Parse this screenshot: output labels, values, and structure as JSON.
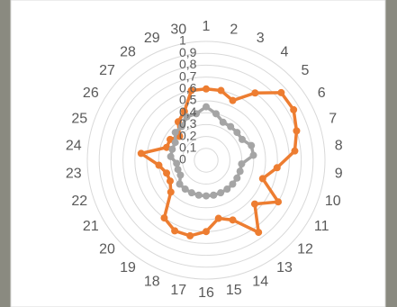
{
  "chart_data": {
    "type": "radar",
    "categories": [
      "1",
      "2",
      "3",
      "4",
      "5",
      "6",
      "7",
      "8",
      "9",
      "10",
      "11",
      "12",
      "13",
      "14",
      "15",
      "16",
      "17",
      "18",
      "19",
      "20",
      "21",
      "22",
      "23",
      "24",
      "25",
      "26",
      "27",
      "28",
      "29",
      "30"
    ],
    "series": [
      {
        "color": "#ED7D31",
        "values": [
          0.6,
          0.6,
          0.55,
          0.7,
          0.85,
          0.85,
          0.8,
          0.75,
          0.6,
          0.5,
          0.7,
          0.55,
          0.75,
          0.55,
          0.5,
          0.6,
          0.65,
          0.65,
          0.6,
          0.4,
          0.35,
          0.35,
          0.4,
          0.55,
          0.35,
          0.35,
          0.3,
          0.4,
          0.45,
          0.6
        ]
      },
      {
        "color": "#A5A5A5",
        "values": [
          0.45,
          0.4,
          0.35,
          0.35,
          0.35,
          0.35,
          0.4,
          0.4,
          0.3,
          0.3,
          0.3,
          0.3,
          0.3,
          0.3,
          0.3,
          0.3,
          0.3,
          0.3,
          0.3,
          0.3,
          0.25,
          0.25,
          0.25,
          0.3,
          0.3,
          0.3,
          0.35,
          0.35,
          0.4,
          0.4
        ]
      }
    ],
    "ylim": [
      0,
      1
    ],
    "yticks": [
      0,
      {
        "value": 0.1,
        "label": "0,1"
      },
      {
        "value": 0.2,
        "label": "0,2"
      },
      {
        "value": 0.3,
        "label": "0,3"
      },
      {
        "value": 0.4,
        "label": "0,4"
      },
      {
        "value": 0.5,
        "label": "0,5"
      },
      {
        "value": 0.6,
        "label": "0,6"
      },
      {
        "value": 0.7,
        "label": "0,7"
      },
      {
        "value": 0.8,
        "label": "0,8"
      },
      {
        "value": 0.9,
        "label": "0,9"
      },
      1
    ],
    "grid": true
  }
}
